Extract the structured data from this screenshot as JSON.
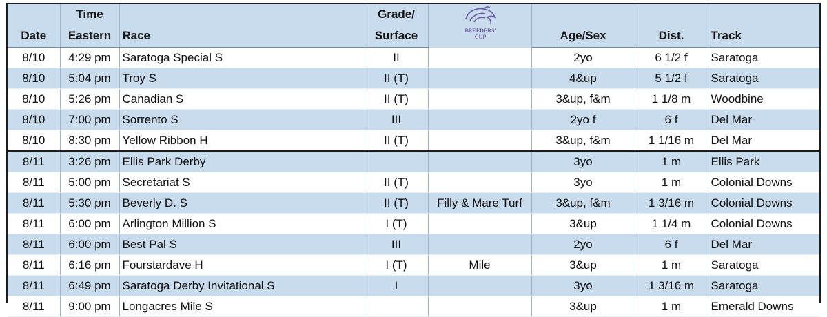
{
  "headers": {
    "date": "Date",
    "time_line1": "Time",
    "time_line2": "Eastern",
    "race": "Race",
    "grade_line1": "Grade/",
    "grade_line2": "Surface",
    "breeders_cup_logo": "Breeders' Cup",
    "age_sex": "Age/Sex",
    "dist": "Dist.",
    "track": "Track"
  },
  "rows": [
    {
      "date": "8/10",
      "time": "4:29 pm",
      "race": "Saratoga Special S",
      "grade": "II",
      "bc": "",
      "age": "2yo",
      "dist": "6 1/2 f",
      "track": "Saratoga"
    },
    {
      "date": "8/10",
      "time": "5:04 pm",
      "race": "Troy S",
      "grade": "II (T)",
      "bc": "",
      "age": "4&up",
      "dist": "5 1/2 f",
      "track": "Saratoga"
    },
    {
      "date": "8/10",
      "time": "5:26 pm",
      "race": "Canadian S",
      "grade": "II (T)",
      "bc": "",
      "age": "3&up, f&m",
      "dist": "1 1/8 m",
      "track": "Woodbine"
    },
    {
      "date": "8/10",
      "time": "7:00 pm",
      "race": "Sorrento S",
      "grade": "III",
      "bc": "",
      "age": "2yo f",
      "dist": "6 f",
      "track": "Del Mar"
    },
    {
      "date": "8/10",
      "time": "8:30 pm",
      "race": "Yellow Ribbon H",
      "grade": "II (T)",
      "bc": "",
      "age": "3&up, f&m",
      "dist": "1 1/16 m",
      "track": "Del Mar"
    },
    {
      "date": "8/11",
      "time": "3:26 pm",
      "race": "Ellis Park Derby",
      "grade": "",
      "bc": "",
      "age": "3yo",
      "dist": "1 m",
      "track": "Ellis Park"
    },
    {
      "date": "8/11",
      "time": "5:00 pm",
      "race": "Secretariat S",
      "grade": "II (T)",
      "bc": "",
      "age": "3yo",
      "dist": "1 m",
      "track": "Colonial Downs"
    },
    {
      "date": "8/11",
      "time": "5:30 pm",
      "race": "Beverly D. S",
      "grade": "II (T)",
      "bc": "Filly & Mare Turf",
      "age": "3&up, f&m",
      "dist": "1 3/16 m",
      "track": "Colonial Downs"
    },
    {
      "date": "8/11",
      "time": "6:00 pm",
      "race": "Arlington Million S",
      "grade": "I (T)",
      "bc": "",
      "age": "3&up",
      "dist": "1 1/4 m",
      "track": "Colonial Downs"
    },
    {
      "date": "8/11",
      "time": "6:00 pm",
      "race": "Best Pal S",
      "grade": "III",
      "bc": "",
      "age": "2yo",
      "dist": "6 f",
      "track": "Del Mar"
    },
    {
      "date": "8/11",
      "time": "6:16 pm",
      "race": "Fourstardave H",
      "grade": "I (T)",
      "bc": "Mile",
      "age": "3&up",
      "dist": "1 m",
      "track": "Saratoga"
    },
    {
      "date": "8/11",
      "time": "6:49 pm",
      "race": "Saratoga Derby Invitational S",
      "grade": "I",
      "bc": "",
      "age": "3yo",
      "dist": "1 3/16 m",
      "track": "Saratoga"
    },
    {
      "date": "8/11",
      "time": "9:00 pm",
      "race": "Longacres Mile S",
      "grade": "",
      "bc": "",
      "age": "3&up",
      "dist": "1 m",
      "track": "Emerald Downs"
    }
  ],
  "colors": {
    "header_bg": "#c8dced",
    "stripe_bg": "#c8dced",
    "logo_purple": "#6b5aa8"
  },
  "icons": {
    "logo": "breeders-cup-horse-logo"
  }
}
